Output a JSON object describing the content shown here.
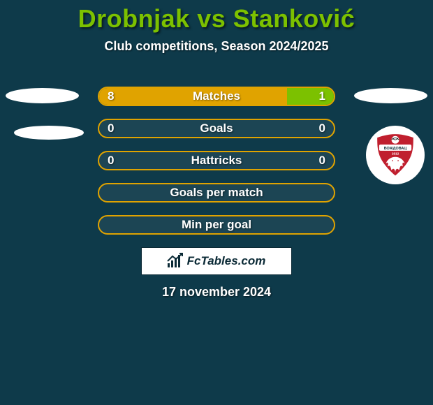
{
  "background_color": "#0e3a4a",
  "title_color": "#7cc100",
  "text_color": "#ffffff",
  "title": "Drobnjak vs Stanković",
  "subtitle": "Club competitions, Season 2024/2025",
  "date": "17 november 2024",
  "brand_text": "FcTables.com",
  "left_color": "#e0a300",
  "right_color": "#7cc100",
  "bar_empty_color": "rgba(255,255,255,0.06)",
  "bar_border_color": "#e0a300",
  "rows": [
    {
      "label": "Matches",
      "left": "8",
      "right": "1",
      "left_pct": 80,
      "right_pct": 20,
      "show_values": true,
      "has_fill": true
    },
    {
      "label": "Goals",
      "left": "0",
      "right": "0",
      "left_pct": 0,
      "right_pct": 0,
      "show_values": true,
      "has_fill": false
    },
    {
      "label": "Hattricks",
      "left": "0",
      "right": "0",
      "left_pct": 0,
      "right_pct": 0,
      "show_values": true,
      "has_fill": false
    },
    {
      "label": "Goals per match",
      "left": "",
      "right": "",
      "left_pct": 0,
      "right_pct": 0,
      "show_values": false,
      "has_fill": false
    },
    {
      "label": "Min per goal",
      "left": "",
      "right": "",
      "left_pct": 0,
      "right_pct": 0,
      "show_values": false,
      "has_fill": false
    }
  ],
  "crest": {
    "shield_color": "#c01f2e",
    "shield_border": "#ffffff",
    "banner_color": "#ffffff",
    "banner_text_color": "#0b2a36",
    "banner_text": "ВОЖДОВАЦ",
    "year": "1912",
    "dragon_color": "#ffffff",
    "ball_color": "#ffffff"
  }
}
